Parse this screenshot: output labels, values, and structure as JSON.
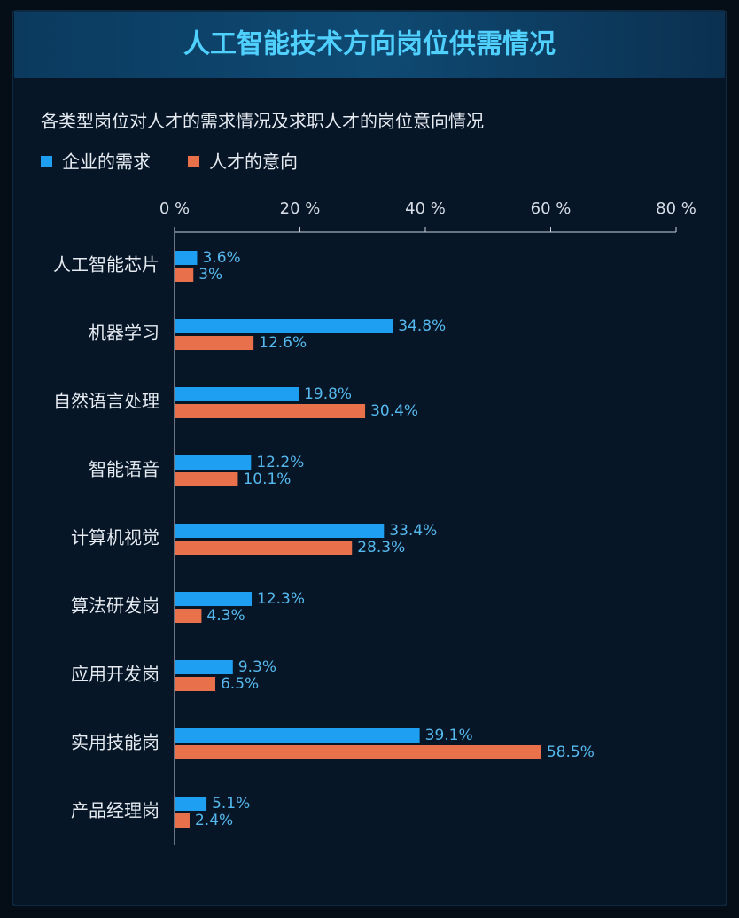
{
  "chart_data": {
    "type": "bar",
    "orientation": "horizontal",
    "title": "人工智能技术方向岗位供需情况",
    "subtitle": "各类型岗位对人才的需求情况及求职人才的岗位意向情况",
    "categories": [
      "人工智能芯片",
      "机器学习",
      "自然语言处理",
      "智能语音",
      "计算机视觉",
      "算法研发岗",
      "应用开发岗",
      "实用技能岗",
      "产品经理岗"
    ],
    "series": [
      {
        "name": "企业的需求",
        "color": "#1e9ff2",
        "values": [
          3.6,
          34.8,
          19.8,
          12.2,
          33.4,
          12.3,
          9.3,
          39.1,
          5.1
        ],
        "value_labels": [
          "3.6%",
          "34.8%",
          "19.8%",
          "12.2%",
          "33.4%",
          "12.3%",
          "9.3%",
          "39.1%",
          "5.1%"
        ]
      },
      {
        "name": "人才的意向",
        "color": "#e8704a",
        "values": [
          3,
          12.6,
          30.4,
          10.1,
          28.3,
          4.3,
          6.5,
          58.5,
          2.4
        ],
        "value_labels": [
          "3%",
          "12.6%",
          "30.4%",
          "10.1%",
          "28.3%",
          "4.3%",
          "6.5%",
          "58.5%",
          "2.4%"
        ]
      }
    ],
    "xlim": [
      0,
      80
    ],
    "xticks": [
      {
        "value": 0,
        "label": "0 %"
      },
      {
        "value": 20,
        "label": "20 %"
      },
      {
        "value": 40,
        "label": "40 %"
      },
      {
        "value": 60,
        "label": "60 %"
      },
      {
        "value": 80,
        "label": "80 %"
      }
    ]
  }
}
